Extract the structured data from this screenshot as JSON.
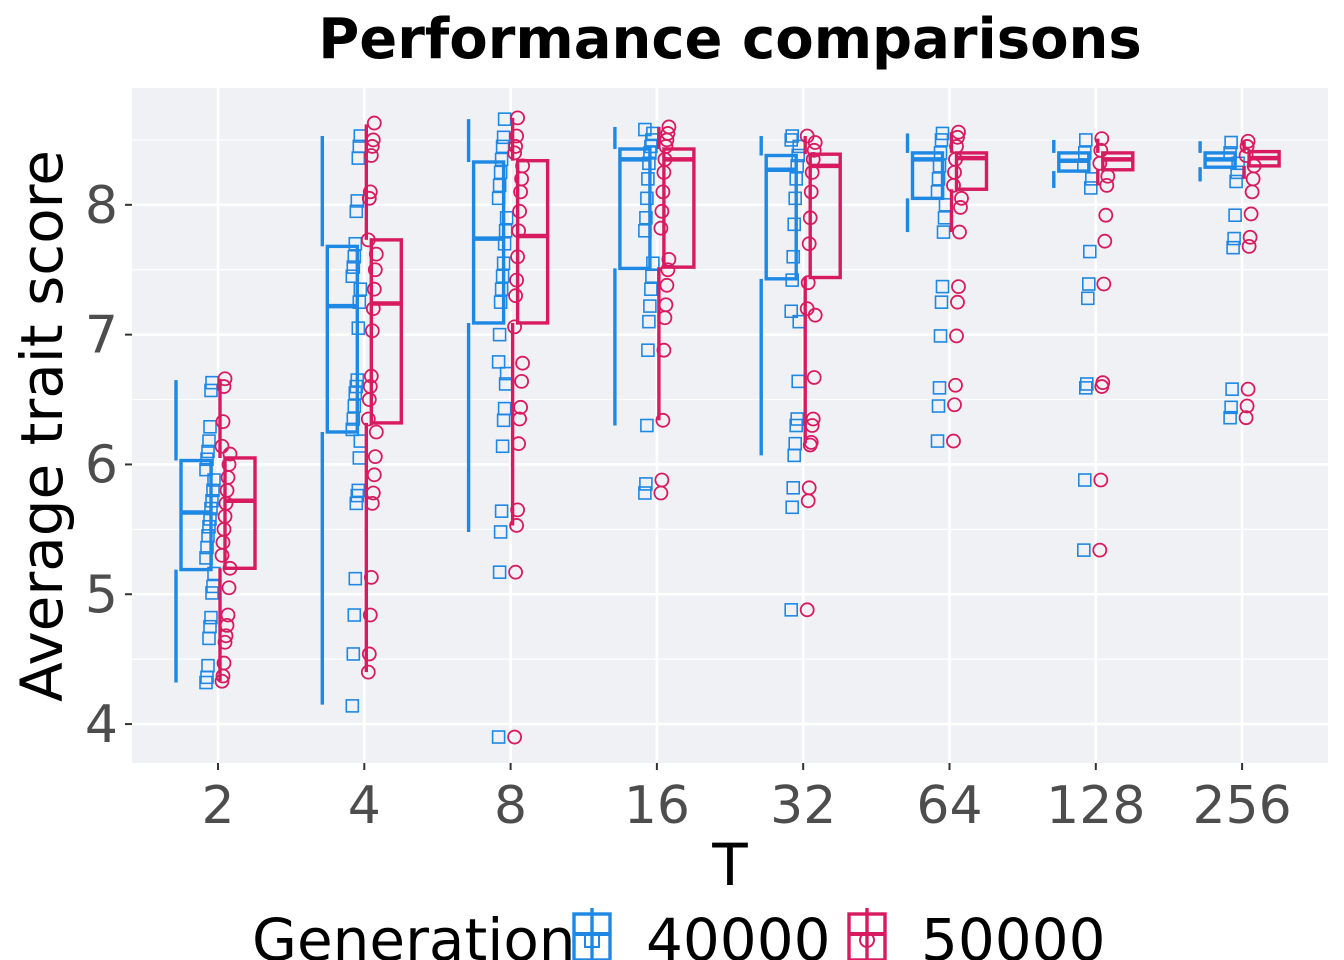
{
  "chart_data": {
    "type": "boxplot",
    "title": "Performance comparisons",
    "xlabel": "T",
    "ylabel": "Average trait score",
    "categories": [
      "2",
      "4",
      "8",
      "16",
      "32",
      "64",
      "128",
      "256"
    ],
    "y_ticks": [
      "4",
      "5",
      "6",
      "7",
      "8"
    ],
    "ylim": [
      3.7,
      8.9
    ],
    "grid": true,
    "legend": {
      "title": "Generation",
      "position": "bottom",
      "entries": [
        "40000",
        "50000"
      ]
    },
    "series": [
      {
        "name": "40000",
        "color": "#1E88E5",
        "marker": "square",
        "boxes": [
          {
            "whisker_low": 4.32,
            "q1": 5.19,
            "median": 5.63,
            "q3": 6.03,
            "whisker_high": 6.65
          },
          {
            "whisker_low": 4.15,
            "q1": 6.25,
            "median": 7.22,
            "q3": 7.68,
            "whisker_high": 8.53
          },
          {
            "whisker_low": 5.48,
            "q1": 7.09,
            "median": 7.74,
            "q3": 8.33,
            "whisker_high": 8.66
          },
          {
            "whisker_low": 6.3,
            "q1": 7.51,
            "median": 8.35,
            "q3": 8.43,
            "whisker_high": 8.6
          },
          {
            "whisker_low": 6.07,
            "q1": 7.43,
            "median": 8.27,
            "q3": 8.38,
            "whisker_high": 8.53
          },
          {
            "whisker_low": 7.79,
            "q1": 8.05,
            "median": 8.35,
            "q3": 8.4,
            "whisker_high": 8.55
          },
          {
            "whisker_low": 8.13,
            "q1": 8.26,
            "median": 8.34,
            "q3": 8.4,
            "whisker_high": 8.5
          },
          {
            "whisker_low": 8.18,
            "q1": 8.29,
            "median": 8.35,
            "q3": 8.4,
            "whisker_high": 8.49
          }
        ],
        "points": [
          [
            4.32,
            4.36,
            4.45,
            4.66,
            4.75,
            4.82,
            5.01,
            5.06,
            5.16,
            5.28,
            5.36,
            5.45,
            5.52,
            5.58,
            5.66,
            5.72,
            5.8,
            5.88,
            5.96,
            6.04,
            6.1,
            6.18,
            6.29,
            6.57,
            6.63
          ],
          [
            4.14,
            4.54,
            4.84,
            5.12,
            5.7,
            5.76,
            5.8,
            6.05,
            6.18,
            6.27,
            6.35,
            6.45,
            6.55,
            6.6,
            6.65,
            7.05,
            7.25,
            7.35,
            7.45,
            7.52,
            7.6,
            7.7,
            7.95,
            8.03,
            8.36,
            8.45,
            8.53
          ],
          [
            3.9,
            5.17,
            5.48,
            5.64,
            6.14,
            6.34,
            6.43,
            6.62,
            6.7,
            6.79,
            7.0,
            7.25,
            7.35,
            7.45,
            7.55,
            7.7,
            7.8,
            7.9,
            8.05,
            8.15,
            8.25,
            8.35,
            8.45,
            8.52,
            8.66
          ],
          [
            5.78,
            5.85,
            6.3,
            6.88,
            7.1,
            7.22,
            7.35,
            7.45,
            7.55,
            7.8,
            7.9,
            8.05,
            8.2,
            8.32,
            8.4,
            8.45,
            8.5,
            8.55,
            8.58
          ],
          [
            4.88,
            5.67,
            5.82,
            6.07,
            6.16,
            6.3,
            6.35,
            6.64,
            7.1,
            7.18,
            7.42,
            7.6,
            7.85,
            8.05,
            8.2,
            8.3,
            8.38,
            8.45,
            8.5,
            8.53
          ],
          [
            6.18,
            6.45,
            6.59,
            6.99,
            7.25,
            7.37,
            7.79,
            7.9,
            8.0,
            8.1,
            8.2,
            8.3,
            8.4,
            8.5,
            8.55
          ],
          [
            5.34,
            5.88,
            6.59,
            6.62,
            7.28,
            7.39,
            7.64,
            8.13,
            8.2,
            8.3,
            8.4,
            8.5
          ],
          [
            6.36,
            6.44,
            6.58,
            7.67,
            7.74,
            7.92,
            8.18,
            8.25,
            8.32,
            8.4,
            8.48
          ]
        ]
      },
      {
        "name": "50000",
        "color": "#D81B60",
        "marker": "circle",
        "boxes": [
          {
            "whisker_low": 4.33,
            "q1": 5.2,
            "median": 5.72,
            "q3": 6.05,
            "whisker_high": 6.66
          },
          {
            "whisker_low": 4.4,
            "q1": 6.32,
            "median": 7.24,
            "q3": 7.73,
            "whisker_high": 8.62
          },
          {
            "whisker_low": 5.53,
            "q1": 7.09,
            "median": 7.76,
            "q3": 8.34,
            "whisker_high": 8.67
          },
          {
            "whisker_low": 6.34,
            "q1": 7.52,
            "median": 8.35,
            "q3": 8.43,
            "whisker_high": 8.6
          },
          {
            "whisker_low": 6.16,
            "q1": 7.44,
            "median": 8.3,
            "q3": 8.39,
            "whisker_high": 8.53
          },
          {
            "whisker_low": 7.79,
            "q1": 8.12,
            "median": 8.36,
            "q3": 8.4,
            "whisker_high": 8.56
          },
          {
            "whisker_low": 8.15,
            "q1": 8.27,
            "median": 8.35,
            "q3": 8.4,
            "whisker_high": 8.51
          },
          {
            "whisker_low": 8.2,
            "q1": 8.3,
            "median": 8.36,
            "q3": 8.41,
            "whisker_high": 8.49
          }
        ],
        "points": [
          [
            4.33,
            4.37,
            4.47,
            4.63,
            4.68,
            4.76,
            4.84,
            5.05,
            5.2,
            5.3,
            5.4,
            5.5,
            5.6,
            5.7,
            5.8,
            5.9,
            6.0,
            6.08,
            6.14,
            6.33,
            6.6,
            6.66
          ],
          [
            4.4,
            4.54,
            4.84,
            5.13,
            5.7,
            5.78,
            5.92,
            6.06,
            6.25,
            6.35,
            6.5,
            6.6,
            6.68,
            7.03,
            7.2,
            7.35,
            7.5,
            7.62,
            7.73,
            8.05,
            8.1,
            8.38,
            8.45,
            8.5,
            8.63
          ],
          [
            3.9,
            5.17,
            5.53,
            5.65,
            6.16,
            6.35,
            6.44,
            6.64,
            6.78,
            7.06,
            7.3,
            7.42,
            7.6,
            7.8,
            7.95,
            8.1,
            8.2,
            8.3,
            8.4,
            8.45,
            8.53,
            8.67
          ],
          [
            5.78,
            5.88,
            6.34,
            6.88,
            7.13,
            7.23,
            7.38,
            7.5,
            7.58,
            7.82,
            7.95,
            8.1,
            8.25,
            8.35,
            8.45,
            8.5,
            8.55,
            8.6
          ],
          [
            4.88,
            5.72,
            5.82,
            6.15,
            6.17,
            6.3,
            6.35,
            6.67,
            7.15,
            7.2,
            7.4,
            7.7,
            7.9,
            8.1,
            8.25,
            8.35,
            8.42,
            8.48,
            8.53
          ],
          [
            6.18,
            6.46,
            6.61,
            6.99,
            7.25,
            7.37,
            7.79,
            7.98,
            8.05,
            8.15,
            8.25,
            8.35,
            8.45,
            8.52,
            8.56
          ],
          [
            5.34,
            5.88,
            6.6,
            6.63,
            7.39,
            7.72,
            7.92,
            8.15,
            8.22,
            8.32,
            8.42,
            8.51
          ],
          [
            6.36,
            6.45,
            6.58,
            7.68,
            7.75,
            7.93,
            8.1,
            8.2,
            8.3,
            8.38,
            8.45,
            8.49
          ]
        ]
      }
    ]
  }
}
